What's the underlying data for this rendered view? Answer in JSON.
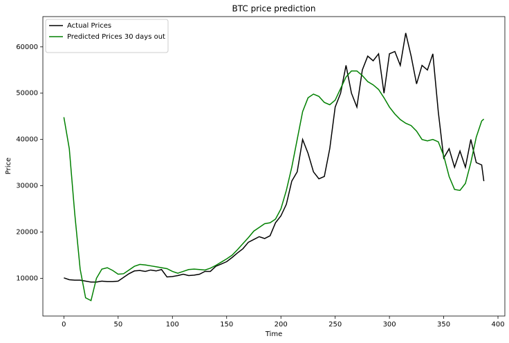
{
  "chart_data": {
    "type": "line",
    "title": "BTC price prediction",
    "x_label": "Time",
    "y_label": "Price",
    "x": [
      0,
      5,
      10,
      15,
      20,
      25,
      30,
      35,
      40,
      45,
      50,
      55,
      60,
      65,
      70,
      75,
      80,
      85,
      90,
      95,
      100,
      105,
      110,
      115,
      120,
      125,
      130,
      135,
      140,
      145,
      150,
      155,
      160,
      165,
      170,
      175,
      180,
      185,
      190,
      195,
      200,
      205,
      210,
      215,
      220,
      225,
      230,
      235,
      240,
      245,
      250,
      255,
      260,
      265,
      270,
      275,
      280,
      285,
      290,
      295,
      300,
      305,
      310,
      315,
      320,
      325,
      330,
      335,
      340,
      345,
      350,
      355,
      360,
      365,
      370,
      375,
      380,
      385,
      387
    ],
    "series": [
      {
        "name": "Actual Prices",
        "color": "#000000",
        "values": [
          10100,
          9700,
          9600,
          9600,
          9400,
          9200,
          9200,
          9400,
          9300,
          9300,
          9400,
          10200,
          11000,
          11600,
          11700,
          11500,
          11800,
          11600,
          11900,
          10300,
          10400,
          10600,
          10900,
          10600,
          10700,
          10900,
          11500,
          11500,
          12600,
          13100,
          13600,
          14500,
          15500,
          16400,
          17800,
          18400,
          19000,
          18600,
          19200,
          22000,
          23500,
          26000,
          31000,
          33000,
          40000,
          37000,
          33000,
          31500,
          32000,
          38000,
          47000,
          50000,
          56000,
          50000,
          47000,
          55000,
          58000,
          57000,
          58500,
          50000,
          58500,
          59000,
          56000,
          63000,
          58000,
          52000,
          56000,
          55000,
          58500,
          46000,
          36000,
          38000,
          34000,
          37500,
          34000,
          40000,
          35000,
          34500,
          31000
        ]
      },
      {
        "name": "Predicted Prices 30 days out",
        "color": "#008000",
        "values": [
          44800,
          38000,
          24000,
          12000,
          5800,
          5200,
          10000,
          12000,
          12300,
          11700,
          10900,
          11000,
          11800,
          12600,
          13000,
          12900,
          12700,
          12500,
          12300,
          12100,
          11500,
          11100,
          11500,
          11900,
          12000,
          11900,
          11800,
          12200,
          12800,
          13500,
          14200,
          15000,
          16200,
          17500,
          18800,
          20200,
          21000,
          21800,
          22000,
          22800,
          25000,
          29000,
          34000,
          40000,
          46000,
          49000,
          49800,
          49300,
          48000,
          47500,
          48500,
          51000,
          53500,
          54800,
          54800,
          53800,
          52500,
          51800,
          50800,
          49000,
          47000,
          45500,
          44300,
          43500,
          43000,
          41800,
          40000,
          39700,
          40000,
          39500,
          36500,
          32000,
          29200,
          29000,
          30500,
          35000,
          40500,
          44000,
          44400
        ]
      }
    ],
    "xlim": [
      -19.35,
      406.35
    ],
    "ylim": [
      1860,
      66540
    ],
    "xticks": [
      0,
      50,
      100,
      150,
      200,
      250,
      300,
      350,
      400
    ],
    "yticks": [
      10000,
      20000,
      30000,
      40000,
      50000,
      60000
    ],
    "legend": "upper left"
  }
}
